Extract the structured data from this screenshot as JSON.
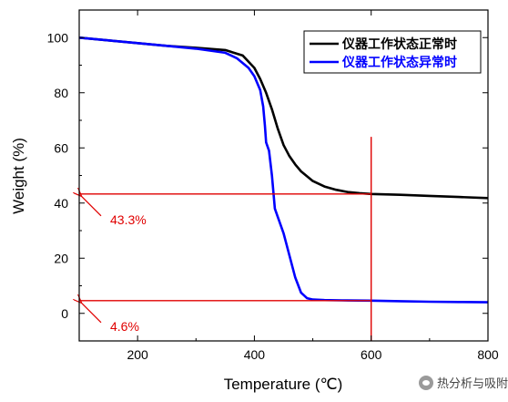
{
  "chart_data": {
    "type": "line",
    "xlabel": "Temperature (℃)",
    "ylabel": "Weight (%)",
    "xlim": [
      100,
      800
    ],
    "ylim": [
      -10,
      110
    ],
    "xticks": [
      200,
      400,
      600,
      800
    ],
    "yticks": [
      0,
      20,
      40,
      60,
      80,
      100
    ],
    "grid": false,
    "legend_position": "top-right",
    "series": [
      {
        "name": "仪器工作状态正常时",
        "color": "#000000",
        "x": [
          100,
          150,
          200,
          250,
          300,
          350,
          380,
          400,
          410,
          420,
          430,
          440,
          450,
          460,
          470,
          480,
          500,
          520,
          540,
          560,
          580,
          600,
          650,
          700,
          750,
          800
        ],
        "y": [
          100,
          99,
          98,
          97,
          96.3,
          95.5,
          93.5,
          89,
          85,
          80,
          74,
          67,
          61,
          57,
          54,
          51.5,
          48,
          46,
          44.8,
          44,
          43.6,
          43.3,
          43,
          42.6,
          42.2,
          41.8
        ]
      },
      {
        "name": "仪器工作状态异常时",
        "color": "#0000ff",
        "x": [
          100,
          150,
          200,
          250,
          300,
          350,
          370,
          390,
          400,
          410,
          415,
          418,
          420,
          425,
          430,
          435,
          440,
          445,
          450,
          455,
          460,
          470,
          480,
          490,
          500,
          520,
          550,
          600,
          650,
          700,
          750,
          800
        ],
        "y": [
          100,
          99,
          98,
          97,
          96,
          94.5,
          92.5,
          89,
          86,
          81,
          75,
          68,
          62,
          59,
          50,
          38,
          35,
          32,
          29,
          25,
          21,
          13,
          7.5,
          5.5,
          5,
          4.8,
          4.7,
          4.6,
          4.4,
          4.2,
          4.1,
          4
        ]
      }
    ],
    "annotations": [
      {
        "text": "43.3%",
        "y": 43.3
      },
      {
        "text": "4.6%",
        "y": 4.6
      }
    ],
    "marker_line_x": 600,
    "marker_line_top": 64
  },
  "colors": {
    "annotation": "#e00000",
    "normal_series": "#000000",
    "abnormal_series": "#0000ff"
  },
  "watermark": {
    "text": "热分析与吸附",
    "icon": "wechat-icon"
  }
}
